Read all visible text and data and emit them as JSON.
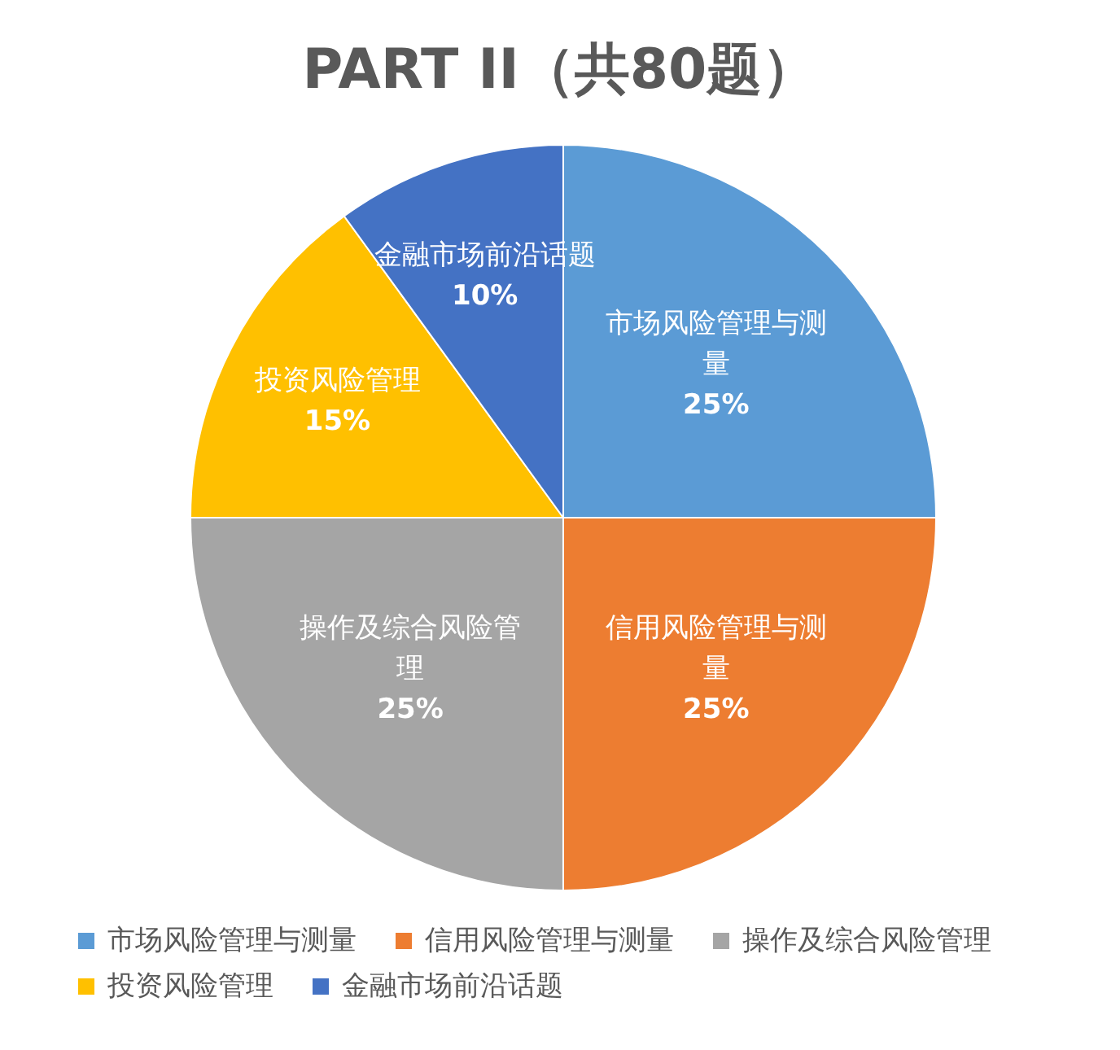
{
  "chart_data": {
    "type": "pie",
    "title": "PART II（共80题）",
    "categories": [
      "市场风险管理与测量",
      "信用风险管理与测量",
      "操作及综合风险管理",
      "投资风险管理",
      "金融市场前沿话题"
    ],
    "values": [
      25,
      25,
      25,
      15,
      10
    ],
    "value_labels": [
      "25%",
      "25%",
      "25%",
      "15%",
      "10%"
    ],
    "colors": [
      "#5b9bd5",
      "#ed7d31",
      "#a5a5a5",
      "#ffc000",
      "#4472c4"
    ],
    "legend": "bottom"
  }
}
